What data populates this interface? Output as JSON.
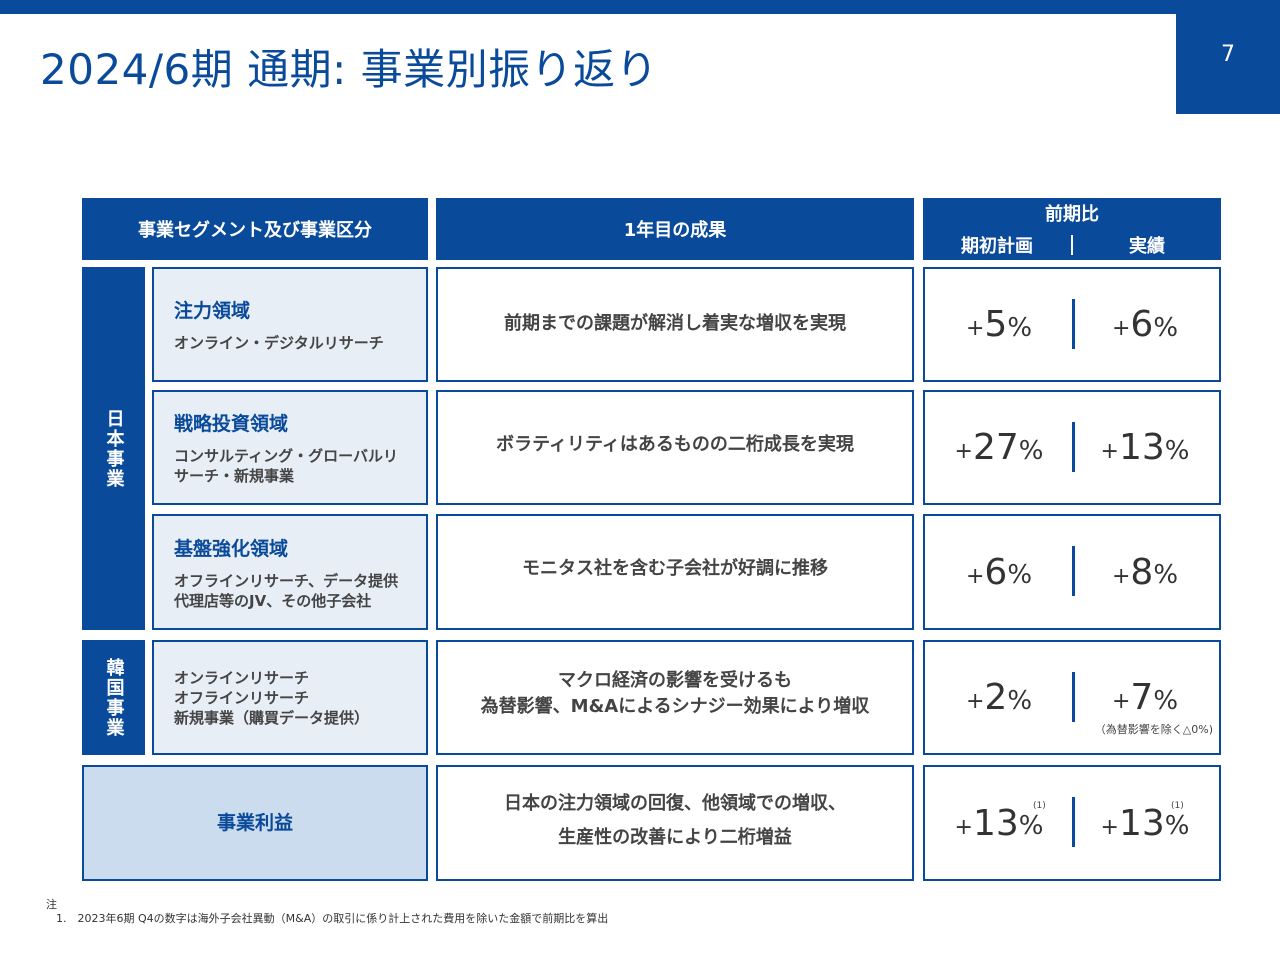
{
  "page": {
    "title": "2024/6期 通期: 事業別振り返り",
    "page_number": "7"
  },
  "header": {
    "segment": "事業セグメント及び事業区分",
    "result": "1年目の成果",
    "comparison": "前期比",
    "plan": "期初計画",
    "actual": "実績"
  },
  "regions": {
    "japan": "日本事業",
    "korea": "韓国事業"
  },
  "rows": [
    {
      "name": "注力領域",
      "desc1": "オンライン・デジタルリサーチ",
      "desc2": "",
      "result1": "前期までの課題が解消し着実な増収を実現",
      "result2": "",
      "plan": "5",
      "actual": "6"
    },
    {
      "name": "戦略投資領域",
      "desc1": "コンサルティング・グローバルリ",
      "desc2": "サーチ・新規事業",
      "result1": "ボラティリティはあるものの二桁成長を実現",
      "result2": "",
      "plan": "27",
      "actual": "13"
    },
    {
      "name": "基盤強化領域",
      "desc1": "オフラインリサーチ、データ提供",
      "desc2": "代理店等のJV、その他子会社",
      "result1": "モニタス社を含む子会社が好調に推移",
      "result2": "",
      "plan": "6",
      "actual": "8"
    },
    {
      "name": "",
      "desc1": "オンラインリサーチ",
      "desc2": "オフラインリサーチ",
      "desc3": "新規事業（購買データ提供）",
      "result1": "マクロ経済の影響を受けるも",
      "result2": "為替影響、M&Aによるシナジー効果により増収",
      "plan": "2",
      "actual": "7",
      "note": "（為替影響を除く△0%)"
    }
  ],
  "profit": {
    "label": "事業利益",
    "result1": "日本の注力領域の回復、他領域での増収、",
    "result2": "生産性の改善により二桁増益",
    "plan": "13",
    "actual": "13",
    "sup": "(1)"
  },
  "symbols": {
    "plus": "+",
    "percent": "%"
  },
  "footnote": {
    "title": "注",
    "item1": "1.　2023年6期 Q4の数字は海外子会社異動（M&A）の取引に係り計上された費用を除いた金額で前期比を算出"
  },
  "colors": {
    "brand_blue": "#0a4a9a",
    "light_blue": "#e8eef6",
    "profit_blue": "#cbdcee"
  }
}
